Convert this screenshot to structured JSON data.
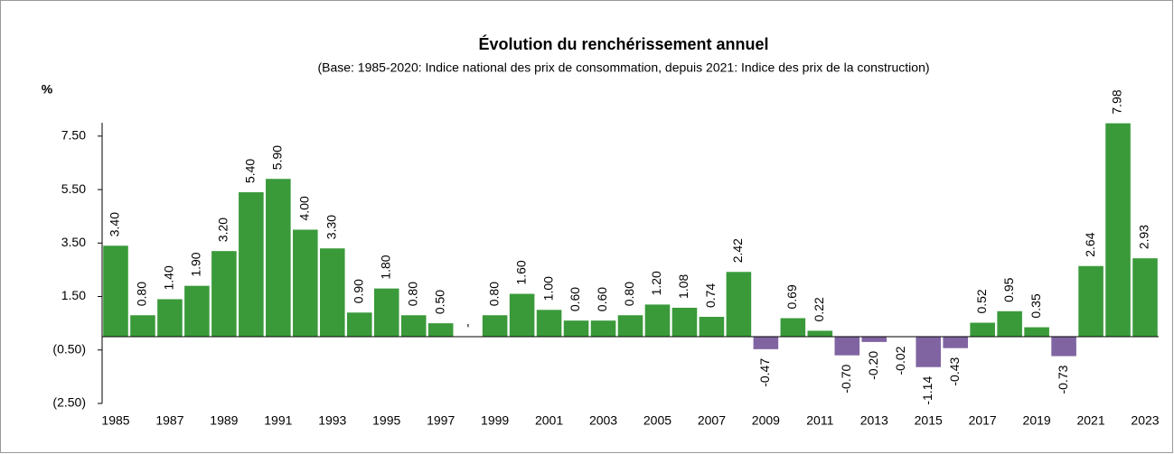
{
  "chart_data": {
    "type": "bar",
    "title": "Évolution du renchérissement annuel",
    "subtitle": "(Base: 1985-2020: Indice national des prix de consommation,  depuis 2021: Indice des prix de la construction)",
    "y_label": "%",
    "categories": [
      "1985",
      null,
      "1987",
      null,
      "1989",
      null,
      "1991",
      null,
      "1993",
      null,
      "1995",
      null,
      "1997",
      null,
      "1999",
      null,
      "2001",
      null,
      "2003",
      null,
      "2005",
      null,
      "2007",
      null,
      "2009",
      null,
      "2011",
      null,
      "2013",
      null,
      "2015",
      null,
      "2017",
      null,
      "2019",
      null,
      "2021",
      null,
      "2023"
    ],
    "values": [
      3.4,
      0.8,
      1.4,
      1.9,
      3.2,
      5.4,
      5.9,
      4.0,
      3.3,
      0.9,
      1.8,
      0.8,
      0.5,
      0,
      0.8,
      1.6,
      1.0,
      0.6,
      0.6,
      0.8,
      1.2,
      1.08,
      0.74,
      2.42,
      -0.47,
      0.69,
      0.22,
      -0.7,
      -0.2,
      -0.02,
      -1.14,
      -0.43,
      0.52,
      0.95,
      0.35,
      -0.73,
      2.64,
      7.98,
      2.93
    ],
    "value_labels": [
      "3.40",
      "0.80",
      "1.40",
      "1.90",
      "3.20",
      "5.40",
      "5.90",
      "4.00",
      "3.30",
      "0.90",
      "1.80",
      "0.80",
      "0.50",
      "-",
      "0.80",
      "1.60",
      "1.00",
      "0.60",
      "0.60",
      "0.80",
      "1.20",
      "1.08",
      "0.74",
      "2.42",
      "-0.47",
      "0.69",
      "0.22",
      "-0.70",
      "-0.20",
      "-0.02",
      "-1.14",
      "-0.43",
      "0.52",
      "0.95",
      "0.35",
      "-0.73",
      "2.64",
      "7.98",
      "2.93"
    ],
    "color": "#3a9a3a",
    "negative_color": "#8064a2",
    "ylim": [
      -2.5,
      8.0
    ],
    "yticks": [
      {
        "value": -2.5,
        "label": "(2.50)"
      },
      {
        "value": -0.5,
        "label": "(0.50)"
      },
      {
        "value": 1.5,
        "label": "1.50"
      },
      {
        "value": 3.5,
        "label": "3.50"
      },
      {
        "value": 5.5,
        "label": "5.50"
      },
      {
        "value": 7.5,
        "label": "7.50"
      }
    ],
    "grid": false
  }
}
